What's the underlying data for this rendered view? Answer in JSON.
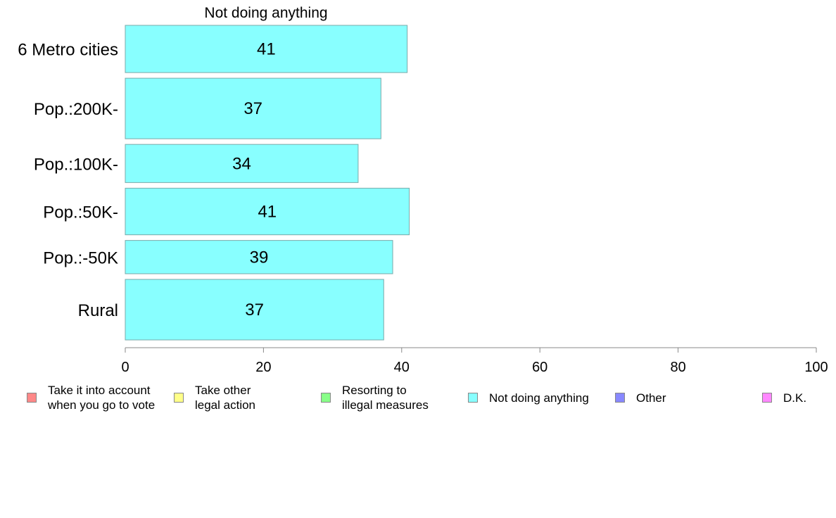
{
  "chart_data": {
    "type": "bar",
    "orientation": "horizontal",
    "title": "Not doing anything",
    "categories": [
      "6 Metro cities",
      "Pop.:200K-",
      "Pop.:100K-",
      "Pop.:50K-",
      "Pop.:-50K",
      "Rural"
    ],
    "values": [
      40.8,
      37.0,
      33.7,
      41.1,
      38.7,
      37.4
    ],
    "data_labels": [
      "41",
      "37",
      "34",
      "41",
      "39",
      "37"
    ],
    "bar_weights": [
      0.78,
      1.0,
      0.63,
      0.77,
      0.55,
      1.0
    ],
    "xlim": [
      0,
      100
    ],
    "xticks": [
      "0",
      "20",
      "40",
      "60",
      "80",
      "100"
    ],
    "bar_color": "#88ffff",
    "bar_edge_color": "#7aa9a9",
    "grid": false,
    "legend_placement": "bottom",
    "legend": [
      {
        "label": "Take it into account\nwhen you go to vote",
        "color": "#ff8888"
      },
      {
        "label": "Take other\nlegal action",
        "color": "#ffff88"
      },
      {
        "label": "Resorting to\nillegal measures",
        "color": "#88ff88"
      },
      {
        "label": "Not doing anything",
        "color": "#88ffff"
      },
      {
        "label": "Other",
        "color": "#8888ff"
      },
      {
        "label": "D.K.",
        "color": "#ff88ff"
      }
    ]
  }
}
